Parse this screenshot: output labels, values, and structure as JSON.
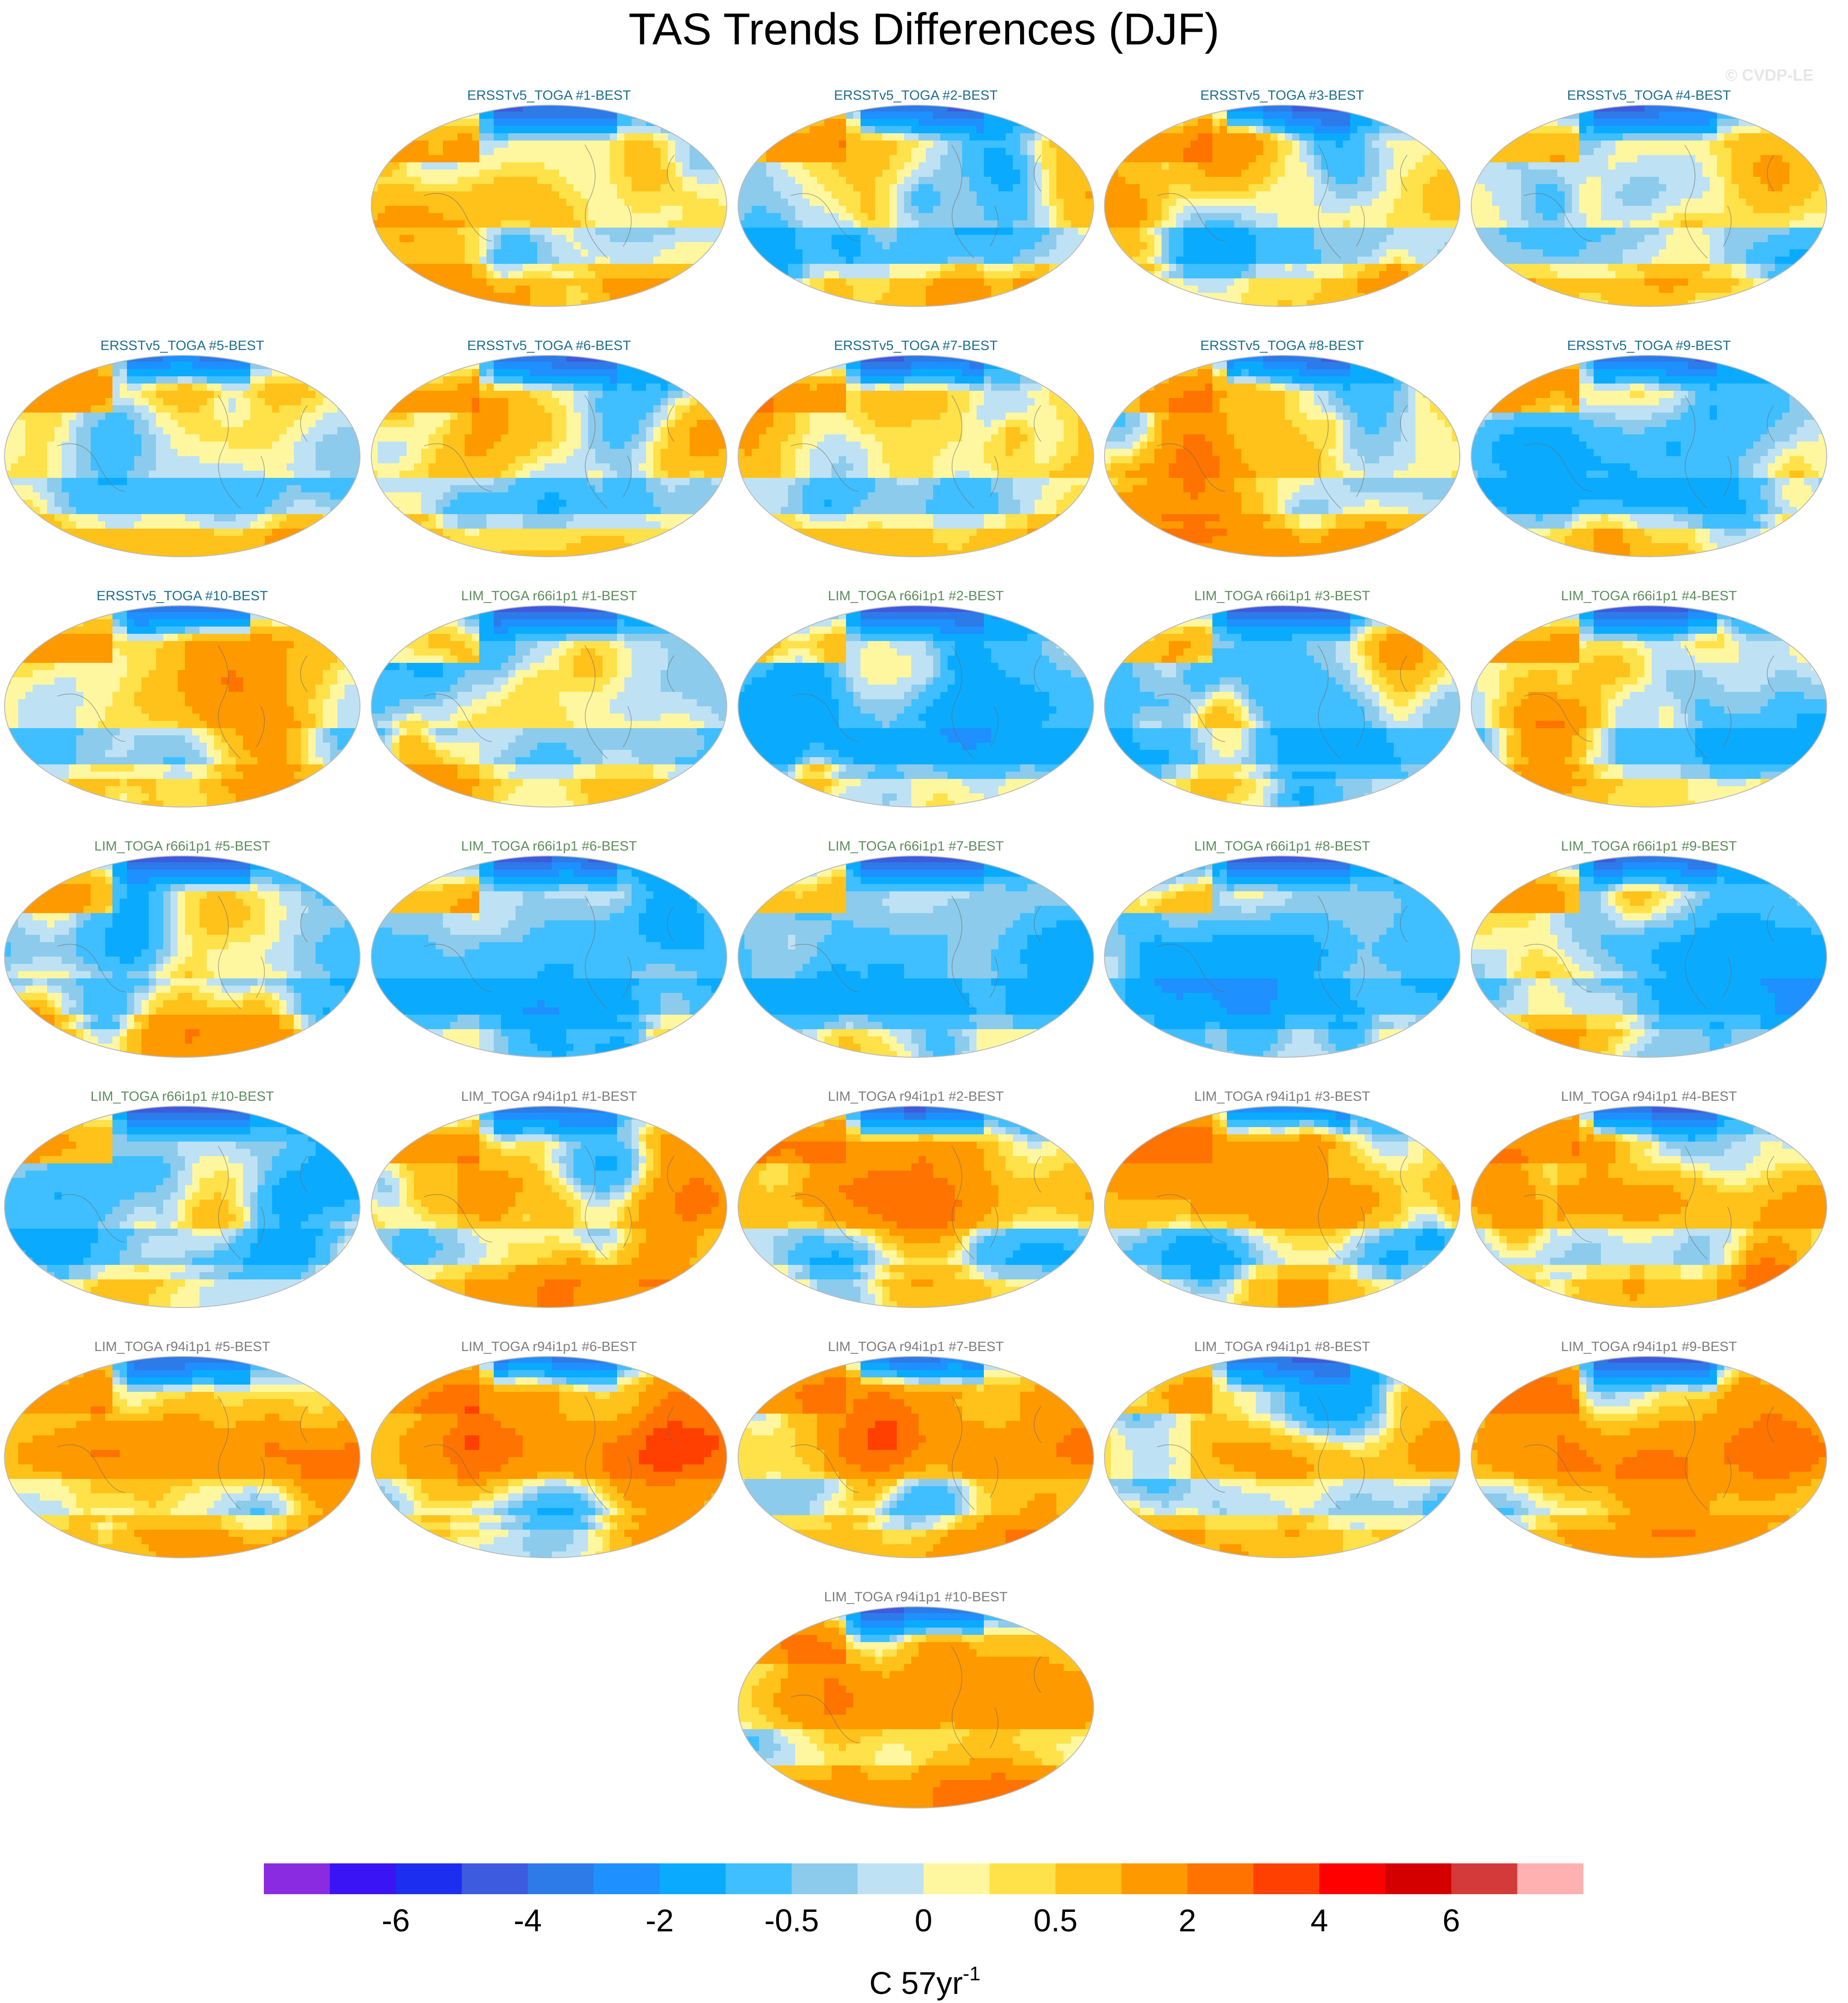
{
  "title": "TAS Trends Differences (DJF)",
  "watermark": "© CVDP-LE",
  "panels": [
    {
      "label": "ERSSTv5_TOGA #1-BEST",
      "group": "ersst",
      "seed": 11,
      "bias": 0.25
    },
    {
      "label": "ERSSTv5_TOGA #2-BEST",
      "group": "ersst",
      "seed": 12,
      "bias": 0.3
    },
    {
      "label": "ERSSTv5_TOGA #3-BEST",
      "group": "ersst",
      "seed": 13,
      "bias": 0.3
    },
    {
      "label": "ERSSTv5_TOGA #4-BEST",
      "group": "ersst",
      "seed": 14,
      "bias": 0.3
    },
    {
      "label": "ERSSTv5_TOGA #5-BEST",
      "group": "ersst",
      "seed": 15,
      "bias": 0.3
    },
    {
      "label": "ERSSTv5_TOGA #6-BEST",
      "group": "ersst",
      "seed": 16,
      "bias": 0.25
    },
    {
      "label": "ERSSTv5_TOGA #7-BEST",
      "group": "ersst",
      "seed": 17,
      "bias": 0.3
    },
    {
      "label": "ERSSTv5_TOGA #8-BEST",
      "group": "ersst",
      "seed": 18,
      "bias": 0.3
    },
    {
      "label": "ERSSTv5_TOGA #9-BEST",
      "group": "ersst",
      "seed": 19,
      "bias": 0.25
    },
    {
      "label": "ERSSTv5_TOGA #10-BEST",
      "group": "ersst",
      "seed": 20,
      "bias": 0.25
    },
    {
      "label": "LIM_TOGA r66i1p1 #1-BEST",
      "group": "r66",
      "seed": 21,
      "bias": -0.35
    },
    {
      "label": "LIM_TOGA r66i1p1 #2-BEST",
      "group": "r66",
      "seed": 22,
      "bias": -0.35
    },
    {
      "label": "LIM_TOGA r66i1p1 #3-BEST",
      "group": "r66",
      "seed": 23,
      "bias": -0.3
    },
    {
      "label": "LIM_TOGA r66i1p1 #4-BEST",
      "group": "r66",
      "seed": 24,
      "bias": -0.25
    },
    {
      "label": "LIM_TOGA r66i1p1 #5-BEST",
      "group": "r66",
      "seed": 25,
      "bias": -0.35
    },
    {
      "label": "LIM_TOGA r66i1p1 #6-BEST",
      "group": "r66",
      "seed": 26,
      "bias": -0.35
    },
    {
      "label": "LIM_TOGA r66i1p1 #7-BEST",
      "group": "r66",
      "seed": 27,
      "bias": -0.3
    },
    {
      "label": "LIM_TOGA r66i1p1 #8-BEST",
      "group": "r66",
      "seed": 28,
      "bias": -0.3
    },
    {
      "label": "LIM_TOGA r66i1p1 #9-BEST",
      "group": "r66",
      "seed": 29,
      "bias": -0.3
    },
    {
      "label": "LIM_TOGA r66i1p1 #10-BEST",
      "group": "r66",
      "seed": 30,
      "bias": -0.25
    },
    {
      "label": "LIM_TOGA r94i1p1 #1-BEST",
      "group": "r94",
      "seed": 31,
      "bias": 0.45
    },
    {
      "label": "LIM_TOGA r94i1p1 #2-BEST",
      "group": "r94",
      "seed": 32,
      "bias": 0.45
    },
    {
      "label": "LIM_TOGA r94i1p1 #3-BEST",
      "group": "r94",
      "seed": 33,
      "bias": 0.45
    },
    {
      "label": "LIM_TOGA r94i1p1 #4-BEST",
      "group": "r94",
      "seed": 34,
      "bias": 0.5
    },
    {
      "label": "LIM_TOGA r94i1p1 #5-BEST",
      "group": "r94",
      "seed": 35,
      "bias": 0.45
    },
    {
      "label": "LIM_TOGA r94i1p1 #6-BEST",
      "group": "r94",
      "seed": 36,
      "bias": 0.45
    },
    {
      "label": "LIM_TOGA r94i1p1 #7-BEST",
      "group": "r94",
      "seed": 37,
      "bias": 0.5
    },
    {
      "label": "LIM_TOGA r94i1p1 #8-BEST",
      "group": "r94",
      "seed": 38,
      "bias": 0.5
    },
    {
      "label": "LIM_TOGA r94i1p1 #9-BEST",
      "group": "r94",
      "seed": 39,
      "bias": 0.45
    },
    {
      "label": "LIM_TOGA r94i1p1 #10-BEST",
      "group": "r94",
      "seed": 40,
      "bias": 0.5
    }
  ],
  "label_colors": {
    "ersst": "#1e6e8c",
    "r66": "#5d8c5d",
    "r94": "#7d7d7d"
  },
  "colorbar": {
    "colors": [
      "#8a2be2",
      "#3a14f5",
      "#1c2ef0",
      "#3d5bdf",
      "#2c7be9",
      "#1e90ff",
      "#0aabff",
      "#3fbfff",
      "#8ccbec",
      "#bee2f4",
      "#fff7a0",
      "#ffe14a",
      "#ffc21a",
      "#ff9900",
      "#ff7300",
      "#ff4000",
      "#ff0000",
      "#d40000",
      "#d43a3a",
      "#ffb0b0"
    ],
    "tick_labels": [
      "-6",
      "-4",
      "-2",
      "-0.5",
      "0",
      "0.5",
      "2",
      "4",
      "6"
    ],
    "unit": "C 57yr",
    "unit_superscript": "-1"
  }
}
